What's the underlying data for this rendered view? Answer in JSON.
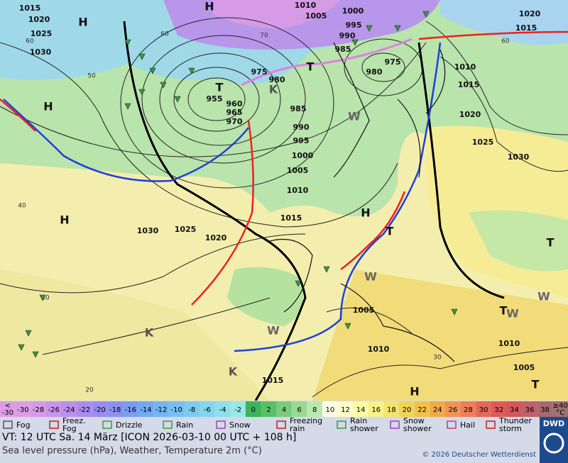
{
  "map": {
    "pressure_labels": [
      "1015",
      "1020",
      "1025",
      "1030",
      "1010",
      "1005",
      "1000",
      "995",
      "990",
      "985",
      "980",
      "975",
      "975",
      "980",
      "955",
      "960",
      "965",
      "970",
      "985",
      "990",
      "995",
      "1000",
      "1005",
      "1010",
      "1015",
      "1030",
      "1025",
      "1020",
      "1010",
      "1015",
      "1020",
      "1025",
      "1030",
      "1005",
      "1010",
      "1015",
      "1010",
      "1005",
      "1020",
      "1015"
    ],
    "centers": [
      "H",
      "H",
      "H",
      "H",
      "H",
      "H",
      "T",
      "T",
      "T",
      "T",
      "T",
      "T",
      "K",
      "K",
      "K",
      "W",
      "W",
      "W",
      "W",
      "W"
    ],
    "isotherm_labels": [
      "60",
      "50",
      "40",
      "30",
      "20",
      "70",
      "60",
      "30",
      "60"
    ]
  },
  "legend": {
    "low": [
      "<",
      "-30"
    ],
    "scale": [
      {
        "value": -30,
        "color": "#dd9de6"
      },
      {
        "value": -28,
        "color": "#d49ae8"
      },
      {
        "value": -26,
        "color": "#c894ea"
      },
      {
        "value": -24,
        "color": "#bb8fec"
      },
      {
        "value": -22,
        "color": "#ab8cee"
      },
      {
        "value": -20,
        "color": "#9a8cf0"
      },
      {
        "value": -18,
        "color": "#8a92f0"
      },
      {
        "value": -16,
        "color": "#7c9cf2"
      },
      {
        "value": -14,
        "color": "#74a8f2"
      },
      {
        "value": -12,
        "color": "#74b4f2"
      },
      {
        "value": -10,
        "color": "#78c0f2"
      },
      {
        "value": -8,
        "color": "#7ecbf0"
      },
      {
        "value": -6,
        "color": "#84d6ee"
      },
      {
        "value": -4,
        "color": "#8ee0ea"
      },
      {
        "value": -2,
        "color": "#98e8e4"
      },
      {
        "value": 0,
        "color": "#3cb45a"
      },
      {
        "value": 2,
        "color": "#58c068"
      },
      {
        "value": 4,
        "color": "#78cc7c"
      },
      {
        "value": 6,
        "color": "#98da94"
      },
      {
        "value": 8,
        "color": "#bae8b0"
      },
      {
        "value": 10,
        "color": "#fcfce8"
      },
      {
        "value": 12,
        "color": "#fcfcc8"
      },
      {
        "value": 14,
        "color": "#fafaa8"
      },
      {
        "value": 16,
        "color": "#f6f28a"
      },
      {
        "value": 18,
        "color": "#f2e470"
      },
      {
        "value": 20,
        "color": "#f0d45a"
      },
      {
        "value": 22,
        "color": "#f0c24c"
      },
      {
        "value": 24,
        "color": "#f0aa48"
      },
      {
        "value": 26,
        "color": "#f09456"
      },
      {
        "value": 28,
        "color": "#ee7e5a"
      },
      {
        "value": 30,
        "color": "#e66658"
      },
      {
        "value": 32,
        "color": "#dc5a58"
      },
      {
        "value": 34,
        "color": "#d0585c"
      },
      {
        "value": 36,
        "color": "#c0606a"
      },
      {
        "value": 38,
        "color": "#a86a72"
      }
    ],
    "high": [
      "≥40",
      "°C"
    ],
    "weather": [
      [
        "Fog"
      ],
      [
        "Freez.",
        "Fog"
      ],
      [
        "Drizzle"
      ],
      [
        "Rain"
      ],
      [
        "Snow"
      ],
      [
        "Freezing",
        "rain"
      ],
      [
        "Rain",
        "shower"
      ],
      [
        "Snow",
        "shower"
      ],
      [
        "Hail"
      ],
      [
        "Thunder",
        "storm"
      ]
    ]
  },
  "footer": {
    "line1": "VT: 12 UTC Sa.  14 März [ICON 2026-03-10  00 UTC + 108 h]",
    "line2": "Sea level pressure (hPa), Weather, Temperature 2m (°C)",
    "copyright": "© 2026 Deutscher Wetterdienst",
    "logo": "DWD"
  }
}
